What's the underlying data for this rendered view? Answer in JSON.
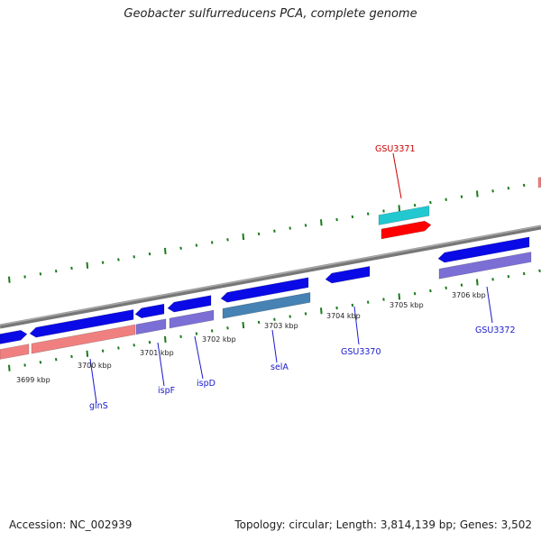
{
  "title": "Geobacter sulfurreducens PCA, complete genome",
  "footer": {
    "accession": "Accession: NC_002939",
    "summary": "Topology: circular; Length: 3,814,139 bp; Genes: 3,502"
  },
  "colors": {
    "backbone": "#808080",
    "dots": "#1a7a1a",
    "cds": "#0a0ae6",
    "gene_pink": "#f08080",
    "gene_purple": "#7b6fd6",
    "gene_steel": "#4682b4",
    "gene_cyan": "#22c8d0",
    "gene_red": "#ff0000",
    "label_blue": "#1a1acc",
    "label_red": "#cc0000"
  },
  "kbp_labels": [
    "3699 kbp",
    "3700 kbp",
    "3701 kbp",
    "3702 kbp",
    "3703 kbp",
    "3704 kbp",
    "3705 kbp",
    "3706 kbp"
  ],
  "gene_labels": [
    "glnS",
    "ispF",
    "ispD",
    "selA",
    "GSU3370",
    "GSU3371",
    "GSU3372"
  ]
}
